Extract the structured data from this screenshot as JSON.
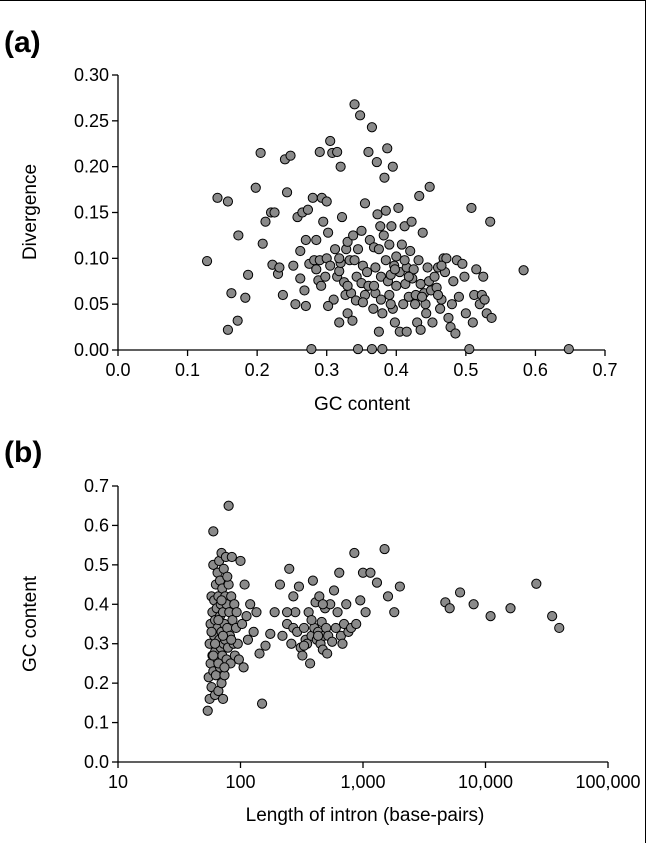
{
  "chart_data": [
    {
      "type": "scatter",
      "panel_label": "(a)",
      "xlabel": "GC content",
      "ylabel": "Divergence",
      "xlim": [
        0,
        0.7
      ],
      "ylim": [
        0,
        0.3
      ],
      "xticks": [
        "0.0",
        "0.1",
        "0.2",
        "0.3",
        "0.4",
        "0.5",
        "0.6",
        "0.7"
      ],
      "yticks": [
        "0.00",
        "0.05",
        "0.10",
        "0.15",
        "0.20",
        "0.25",
        "0.30"
      ],
      "marker_color": "#8a8a8a",
      "points": [
        [
          0.128,
          0.097
        ],
        [
          0.143,
          0.166
        ],
        [
          0.158,
          0.162
        ],
        [
          0.163,
          0.062
        ],
        [
          0.158,
          0.022
        ],
        [
          0.172,
          0.032
        ],
        [
          0.173,
          0.125
        ],
        [
          0.183,
          0.057
        ],
        [
          0.187,
          0.082
        ],
        [
          0.198,
          0.177
        ],
        [
          0.205,
          0.215
        ],
        [
          0.208,
          0.116
        ],
        [
          0.212,
          0.14
        ],
        [
          0.22,
          0.15
        ],
        [
          0.222,
          0.093
        ],
        [
          0.225,
          0.15
        ],
        [
          0.23,
          0.083
        ],
        [
          0.232,
          0.09
        ],
        [
          0.237,
          0.06
        ],
        [
          0.24,
          0.208
        ],
        [
          0.243,
          0.172
        ],
        [
          0.248,
          0.212
        ],
        [
          0.252,
          0.092
        ],
        [
          0.255,
          0.05
        ],
        [
          0.258,
          0.145
        ],
        [
          0.262,
          0.108
        ],
        [
          0.262,
          0.078
        ],
        [
          0.265,
          0.15
        ],
        [
          0.268,
          0.065
        ],
        [
          0.27,
          0.12
        ],
        [
          0.273,
          0.153
        ],
        [
          0.275,
          0.094
        ],
        [
          0.278,
          0.001
        ],
        [
          0.28,
          0.166
        ],
        [
          0.282,
          0.098
        ],
        [
          0.285,
          0.088
        ],
        [
          0.288,
          0.076
        ],
        [
          0.29,
          0.098
        ],
        [
          0.29,
          0.216
        ],
        [
          0.293,
          0.166
        ],
        [
          0.295,
          0.14
        ],
        [
          0.298,
          0.08
        ],
        [
          0.3,
          0.162
        ],
        [
          0.3,
          0.1
        ],
        [
          0.302,
          0.128
        ],
        [
          0.305,
          0.092
        ],
        [
          0.305,
          0.228
        ],
        [
          0.308,
          0.215
        ],
        [
          0.31,
          0.055
        ],
        [
          0.312,
          0.11
        ],
        [
          0.315,
          0.216
        ],
        [
          0.315,
          0.08
        ],
        [
          0.318,
          0.086
        ],
        [
          0.318,
          0.03
        ],
        [
          0.32,
          0.095
        ],
        [
          0.32,
          0.2
        ],
        [
          0.322,
          0.145
        ],
        [
          0.325,
          0.074
        ],
        [
          0.327,
          0.06
        ],
        [
          0.328,
          0.11
        ],
        [
          0.33,
          0.04
        ],
        [
          0.33,
          0.118
        ],
        [
          0.333,
          0.098
        ],
        [
          0.335,
          0.062
        ],
        [
          0.337,
          0.032
        ],
        [
          0.338,
          0.125
        ],
        [
          0.34,
          0.098
        ],
        [
          0.34,
          0.268
        ],
        [
          0.342,
          0.054
        ],
        [
          0.343,
          0.08
        ],
        [
          0.345,
          0.001
        ],
        [
          0.345,
          0.11
        ],
        [
          0.348,
          0.256
        ],
        [
          0.35,
          0.13
        ],
        [
          0.35,
          0.073
        ],
        [
          0.352,
          0.092
        ],
        [
          0.355,
          0.06
        ],
        [
          0.355,
          0.16
        ],
        [
          0.358,
          0.085
        ],
        [
          0.36,
          0.07
        ],
        [
          0.36,
          0.216
        ],
        [
          0.362,
          0.12
        ],
        [
          0.365,
          0.243
        ],
        [
          0.365,
          0.001
        ],
        [
          0.367,
          0.045
        ],
        [
          0.368,
          0.112
        ],
        [
          0.37,
          0.09
        ],
        [
          0.37,
          0.062
        ],
        [
          0.372,
          0.205
        ],
        [
          0.373,
          0.148
        ],
        [
          0.375,
          0.11
        ],
        [
          0.375,
          0.02
        ],
        [
          0.377,
          0.135
        ],
        [
          0.378,
          0.08
        ],
        [
          0.38,
          0.04
        ],
        [
          0.38,
          0.001
        ],
        [
          0.382,
          0.125
        ],
        [
          0.383,
          0.188
        ],
        [
          0.385,
          0.152
        ],
        [
          0.385,
          0.098
        ],
        [
          0.387,
          0.22
        ],
        [
          0.388,
          0.075
        ],
        [
          0.39,
          0.06
        ],
        [
          0.39,
          0.115
        ],
        [
          0.392,
          0.082
        ],
        [
          0.393,
          0.135
        ],
        [
          0.395,
          0.2
        ],
        [
          0.395,
          0.045
        ],
        [
          0.397,
          0.092
        ],
        [
          0.398,
          0.03
        ],
        [
          0.4,
          0.102
        ],
        [
          0.4,
          0.07
        ],
        [
          0.403,
          0.155
        ],
        [
          0.405,
          0.02
        ],
        [
          0.405,
          0.085
        ],
        [
          0.408,
          0.115
        ],
        [
          0.41,
          0.05
        ],
        [
          0.412,
          0.135
        ],
        [
          0.413,
          0.072
        ],
        [
          0.415,
          0.09
        ],
        [
          0.415,
          0.02
        ],
        [
          0.418,
          0.058
        ],
        [
          0.42,
          0.108
        ],
        [
          0.422,
          0.14
        ],
        [
          0.423,
          0.078
        ],
        [
          0.425,
          0.088
        ],
        [
          0.427,
          0.05
        ],
        [
          0.428,
          0.06
        ],
        [
          0.43,
          0.03
        ],
        [
          0.432,
          0.098
        ],
        [
          0.433,
          0.168
        ],
        [
          0.435,
          0.072
        ],
        [
          0.435,
          0.022
        ],
        [
          0.438,
          0.128
        ],
        [
          0.44,
          0.062
        ],
        [
          0.442,
          0.05
        ],
        [
          0.443,
          0.04
        ],
        [
          0.445,
          0.09
        ],
        [
          0.447,
          0.075
        ],
        [
          0.448,
          0.178
        ],
        [
          0.45,
          0.065
        ],
        [
          0.452,
          0.03
        ],
        [
          0.455,
          0.08
        ],
        [
          0.458,
          0.068
        ],
        [
          0.46,
          0.09
        ],
        [
          0.463,
          0.045
        ],
        [
          0.465,
          0.055
        ],
        [
          0.468,
          0.1
        ],
        [
          0.47,
          0.085
        ],
        [
          0.472,
          0.1
        ],
        [
          0.475,
          0.035
        ],
        [
          0.478,
          0.025
        ],
        [
          0.48,
          0.05
        ],
        [
          0.482,
          0.075
        ],
        [
          0.485,
          0.018
        ],
        [
          0.487,
          0.098
        ],
        [
          0.49,
          0.058
        ],
        [
          0.495,
          0.094
        ],
        [
          0.498,
          0.08
        ],
        [
          0.5,
          0.04
        ],
        [
          0.505,
          0.001
        ],
        [
          0.508,
          0.155
        ],
        [
          0.51,
          0.03
        ],
        [
          0.512,
          0.06
        ],
        [
          0.515,
          0.088
        ],
        [
          0.52,
          0.05
        ],
        [
          0.523,
          0.06
        ],
        [
          0.525,
          0.08
        ],
        [
          0.527,
          0.055
        ],
        [
          0.53,
          0.04
        ],
        [
          0.535,
          0.14
        ],
        [
          0.537,
          0.035
        ],
        [
          0.583,
          0.087
        ],
        [
          0.648,
          0.001
        ],
        [
          0.465,
          0.092
        ],
        [
          0.292,
          0.07
        ],
        [
          0.318,
          0.1
        ],
        [
          0.352,
          0.052
        ],
        [
          0.392,
          0.05
        ],
        [
          0.412,
          0.098
        ],
        [
          0.27,
          0.048
        ],
        [
          0.285,
          0.12
        ],
        [
          0.302,
          0.048
        ],
        [
          0.33,
          0.07
        ],
        [
          0.368,
          0.07
        ],
        [
          0.378,
          0.055
        ],
        [
          0.398,
          0.088
        ],
        [
          0.418,
          0.08
        ],
        [
          0.437,
          0.058
        ],
        [
          0.46,
          0.06
        ]
      ]
    },
    {
      "type": "scatter",
      "panel_label": "(b)",
      "xlabel": "Length of intron (base-pairs)",
      "ylabel": "GC content",
      "xscale": "log",
      "xlim": [
        10,
        100000
      ],
      "ylim": [
        0,
        0.7
      ],
      "xtick_values": [
        10,
        100,
        1000,
        10000,
        100000
      ],
      "xticks": [
        "10",
        "100",
        "1,000",
        "10,000",
        "100,000"
      ],
      "yticks": [
        "0.0",
        "0.1",
        "0.2",
        "0.3",
        "0.4",
        "0.5",
        "0.6",
        "0.7"
      ],
      "marker_color": "#8a8a8a",
      "points": [
        [
          54,
          0.13
        ],
        [
          55,
          0.215
        ],
        [
          56,
          0.16
        ],
        [
          56,
          0.3
        ],
        [
          57,
          0.25
        ],
        [
          57,
          0.35
        ],
        [
          58,
          0.42
        ],
        [
          58,
          0.19
        ],
        [
          59,
          0.27
        ],
        [
          59,
          0.38
        ],
        [
          60,
          0.5
        ],
        [
          60,
          0.585
        ],
        [
          60,
          0.23
        ],
        [
          61,
          0.32
        ],
        [
          61,
          0.41
        ],
        [
          62,
          0.17
        ],
        [
          62,
          0.28
        ],
        [
          62,
          0.36
        ],
        [
          63,
          0.45
        ],
        [
          63,
          0.22
        ],
        [
          64,
          0.3
        ],
        [
          64,
          0.39
        ],
        [
          65,
          0.48
        ],
        [
          65,
          0.26
        ],
        [
          65,
          0.34
        ],
        [
          66,
          0.18
        ],
        [
          66,
          0.42
        ],
        [
          67,
          0.31
        ],
        [
          67,
          0.51
        ],
        [
          68,
          0.24
        ],
        [
          68,
          0.37
        ],
        [
          68,
          0.46
        ],
        [
          69,
          0.29
        ],
        [
          69,
          0.4
        ],
        [
          70,
          0.53
        ],
        [
          70,
          0.2
        ],
        [
          70,
          0.33
        ],
        [
          71,
          0.27
        ],
        [
          71,
          0.44
        ],
        [
          72,
          0.16
        ],
        [
          72,
          0.38
        ],
        [
          73,
          0.3
        ],
        [
          73,
          0.49
        ],
        [
          74,
          0.35
        ],
        [
          74,
          0.22
        ],
        [
          75,
          0.42
        ],
        [
          75,
          0.31
        ],
        [
          76,
          0.52
        ],
        [
          77,
          0.26
        ],
        [
          77,
          0.4
        ],
        [
          78,
          0.34
        ],
        [
          79,
          0.29
        ],
        [
          80,
          0.65
        ],
        [
          80,
          0.45
        ],
        [
          81,
          0.38
        ],
        [
          82,
          0.32
        ],
        [
          83,
          0.25
        ],
        [
          84,
          0.42
        ],
        [
          85,
          0.52
        ],
        [
          86,
          0.36
        ],
        [
          88,
          0.3
        ],
        [
          89,
          0.4
        ],
        [
          90,
          0.27
        ],
        [
          92,
          0.34
        ],
        [
          93,
          0.38
        ],
        [
          95,
          0.3
        ],
        [
          97,
          0.26
        ],
        [
          100,
          0.51
        ],
        [
          103,
          0.35
        ],
        [
          106,
          0.24
        ],
        [
          108,
          0.45
        ],
        [
          112,
          0.37
        ],
        [
          115,
          0.31
        ],
        [
          120,
          0.4
        ],
        [
          128,
          0.33
        ],
        [
          135,
          0.38
        ],
        [
          143,
          0.275
        ],
        [
          150,
          0.148
        ],
        [
          160,
          0.295
        ],
        [
          175,
          0.325
        ],
        [
          190,
          0.38
        ],
        [
          210,
          0.45
        ],
        [
          220,
          0.32
        ],
        [
          240,
          0.35
        ],
        [
          250,
          0.49
        ],
        [
          260,
          0.3
        ],
        [
          270,
          0.34
        ],
        [
          280,
          0.38
        ],
        [
          290,
          0.33
        ],
        [
          300,
          0.445
        ],
        [
          310,
          0.29
        ],
        [
          320,
          0.27
        ],
        [
          330,
          0.34
        ],
        [
          340,
          0.31
        ],
        [
          350,
          0.3
        ],
        [
          360,
          0.38
        ],
        [
          370,
          0.25
        ],
        [
          380,
          0.32
        ],
        [
          390,
          0.46
        ],
        [
          400,
          0.34
        ],
        [
          410,
          0.405
        ],
        [
          420,
          0.31
        ],
        [
          430,
          0.33
        ],
        [
          440,
          0.42
        ],
        [
          450,
          0.3
        ],
        [
          460,
          0.355
        ],
        [
          470,
          0.285
        ],
        [
          480,
          0.32
        ],
        [
          490,
          0.39
        ],
        [
          500,
          0.34
        ],
        [
          510,
          0.275
        ],
        [
          520,
          0.32
        ],
        [
          540,
          0.4
        ],
        [
          560,
          0.305
        ],
        [
          580,
          0.435
        ],
        [
          600,
          0.34
        ],
        [
          620,
          0.38
        ],
        [
          640,
          0.48
        ],
        [
          660,
          0.32
        ],
        [
          680,
          0.3
        ],
        [
          700,
          0.35
        ],
        [
          730,
          0.4
        ],
        [
          760,
          0.33
        ],
        [
          800,
          0.34
        ],
        [
          850,
          0.53
        ],
        [
          880,
          0.35
        ],
        [
          950,
          0.41
        ],
        [
          1000,
          0.48
        ],
        [
          1050,
          0.38
        ],
        [
          1150,
          0.48
        ],
        [
          1300,
          0.455
        ],
        [
          1500,
          0.54
        ],
        [
          1600,
          0.42
        ],
        [
          1800,
          0.38
        ],
        [
          2000,
          0.445
        ],
        [
          4700,
          0.405
        ],
        [
          5100,
          0.39
        ],
        [
          6200,
          0.43
        ],
        [
          8000,
          0.4
        ],
        [
          11000,
          0.37
        ],
        [
          16000,
          0.39
        ],
        [
          26000,
          0.452
        ],
        [
          35000,
          0.37
        ],
        [
          40000,
          0.34
        ],
        [
          240,
          0.38
        ],
        [
          270,
          0.42
        ],
        [
          330,
          0.295
        ],
        [
          380,
          0.36
        ],
        [
          430,
          0.32
        ],
        [
          470,
          0.4
        ],
        [
          58,
          0.33
        ],
        [
          62,
          0.3
        ],
        [
          66,
          0.25
        ],
        [
          72,
          0.32
        ],
        [
          78,
          0.47
        ],
        [
          84,
          0.31
        ],
        [
          66,
          0.36
        ],
        [
          70,
          0.41
        ],
        [
          60,
          0.27
        ],
        [
          74,
          0.24
        ]
      ]
    }
  ]
}
